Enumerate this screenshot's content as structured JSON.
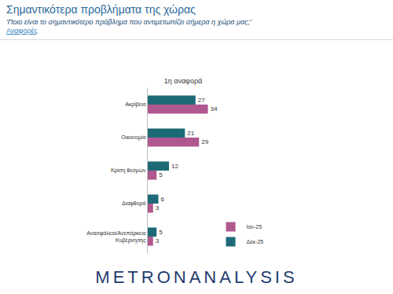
{
  "title": "Σημαντικότερα προβλήματα της χώρας",
  "subtitle": "'Ποιο είναι το σημαντικότερο πρόβλημα που αντιμετωπίζει σήμερα η χώρα μας;'",
  "note": "Αναφορές",
  "footer": "METRONANALYSIS",
  "chart_data": {
    "type": "bar",
    "title": "1η αναφορά",
    "orientation": "horizontal",
    "categories": [
      "Ακρίβεια",
      "Οικονομία",
      "Κρίση θεσμών",
      "Διαφθορά",
      "Ανασφάλεια/Ανεπάρκεια Κυβέρνησης"
    ],
    "series": [
      {
        "name": "Ιαν-25",
        "color": "#b0578f",
        "values": [
          34,
          29,
          5,
          3,
          3
        ]
      },
      {
        "name": "Δεκ-25",
        "color": "#1d6a77",
        "values": [
          27,
          21,
          12,
          6,
          5
        ]
      }
    ],
    "xlim": [
      0,
      40
    ],
    "data_labels": true,
    "tick_labels": "y",
    "grid": false,
    "legend": "bottom right"
  }
}
